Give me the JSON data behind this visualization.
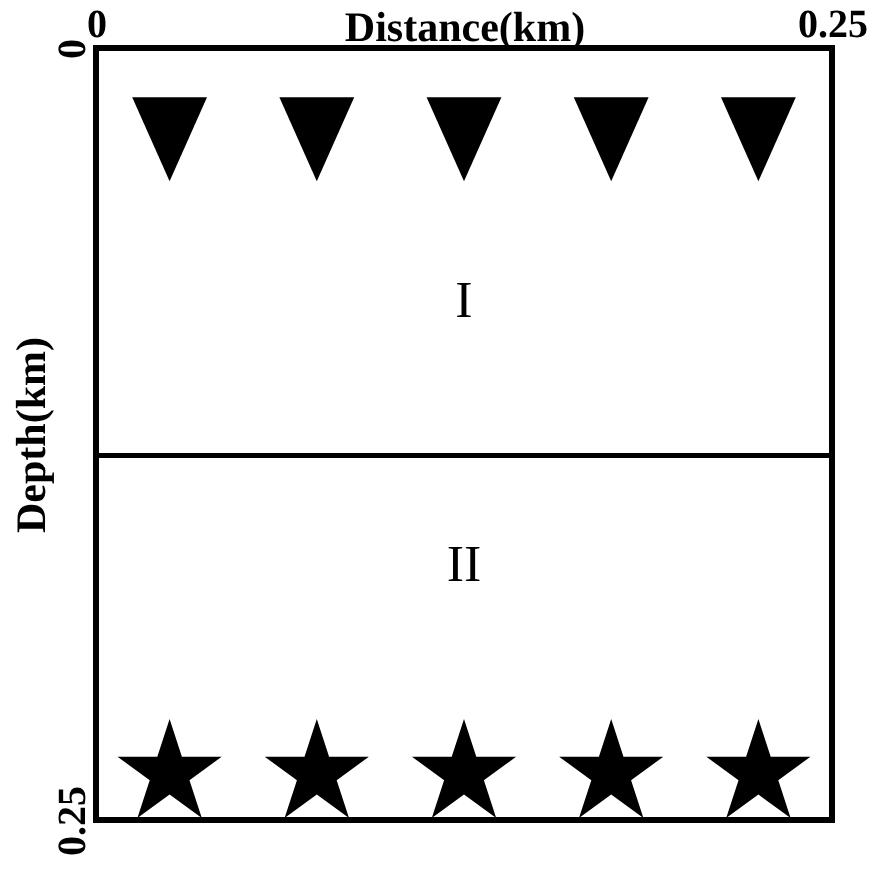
{
  "chart_data": {
    "type": "scatter",
    "xlabel": "Distance(km)",
    "ylabel": "Depth(km)",
    "xlim": [
      0,
      0.25
    ],
    "xticks": [
      0,
      0.25
    ],
    "ylim": [
      0.25,
      0
    ],
    "yticks": [
      0,
      0.25
    ],
    "grid": false,
    "series": [
      {
        "marker": "triangle",
        "color": "#000000",
        "x": [
          0.025,
          0.075,
          0.125,
          0.175,
          0.225
        ],
        "values": [
          0.025,
          0.025,
          0.025,
          0.025,
          0.025
        ]
      },
      {
        "marker": "star",
        "color": "#000000",
        "x": [
          0.025,
          0.075,
          0.125,
          0.175,
          0.225
        ],
        "values": [
          0.235,
          0.235,
          0.235,
          0.235,
          0.235
        ]
      }
    ],
    "ref_lines": [
      {
        "axis": "y",
        "value": 0.132,
        "color": "#000000"
      }
    ],
    "annotations": [
      "I",
      "II"
    ]
  }
}
